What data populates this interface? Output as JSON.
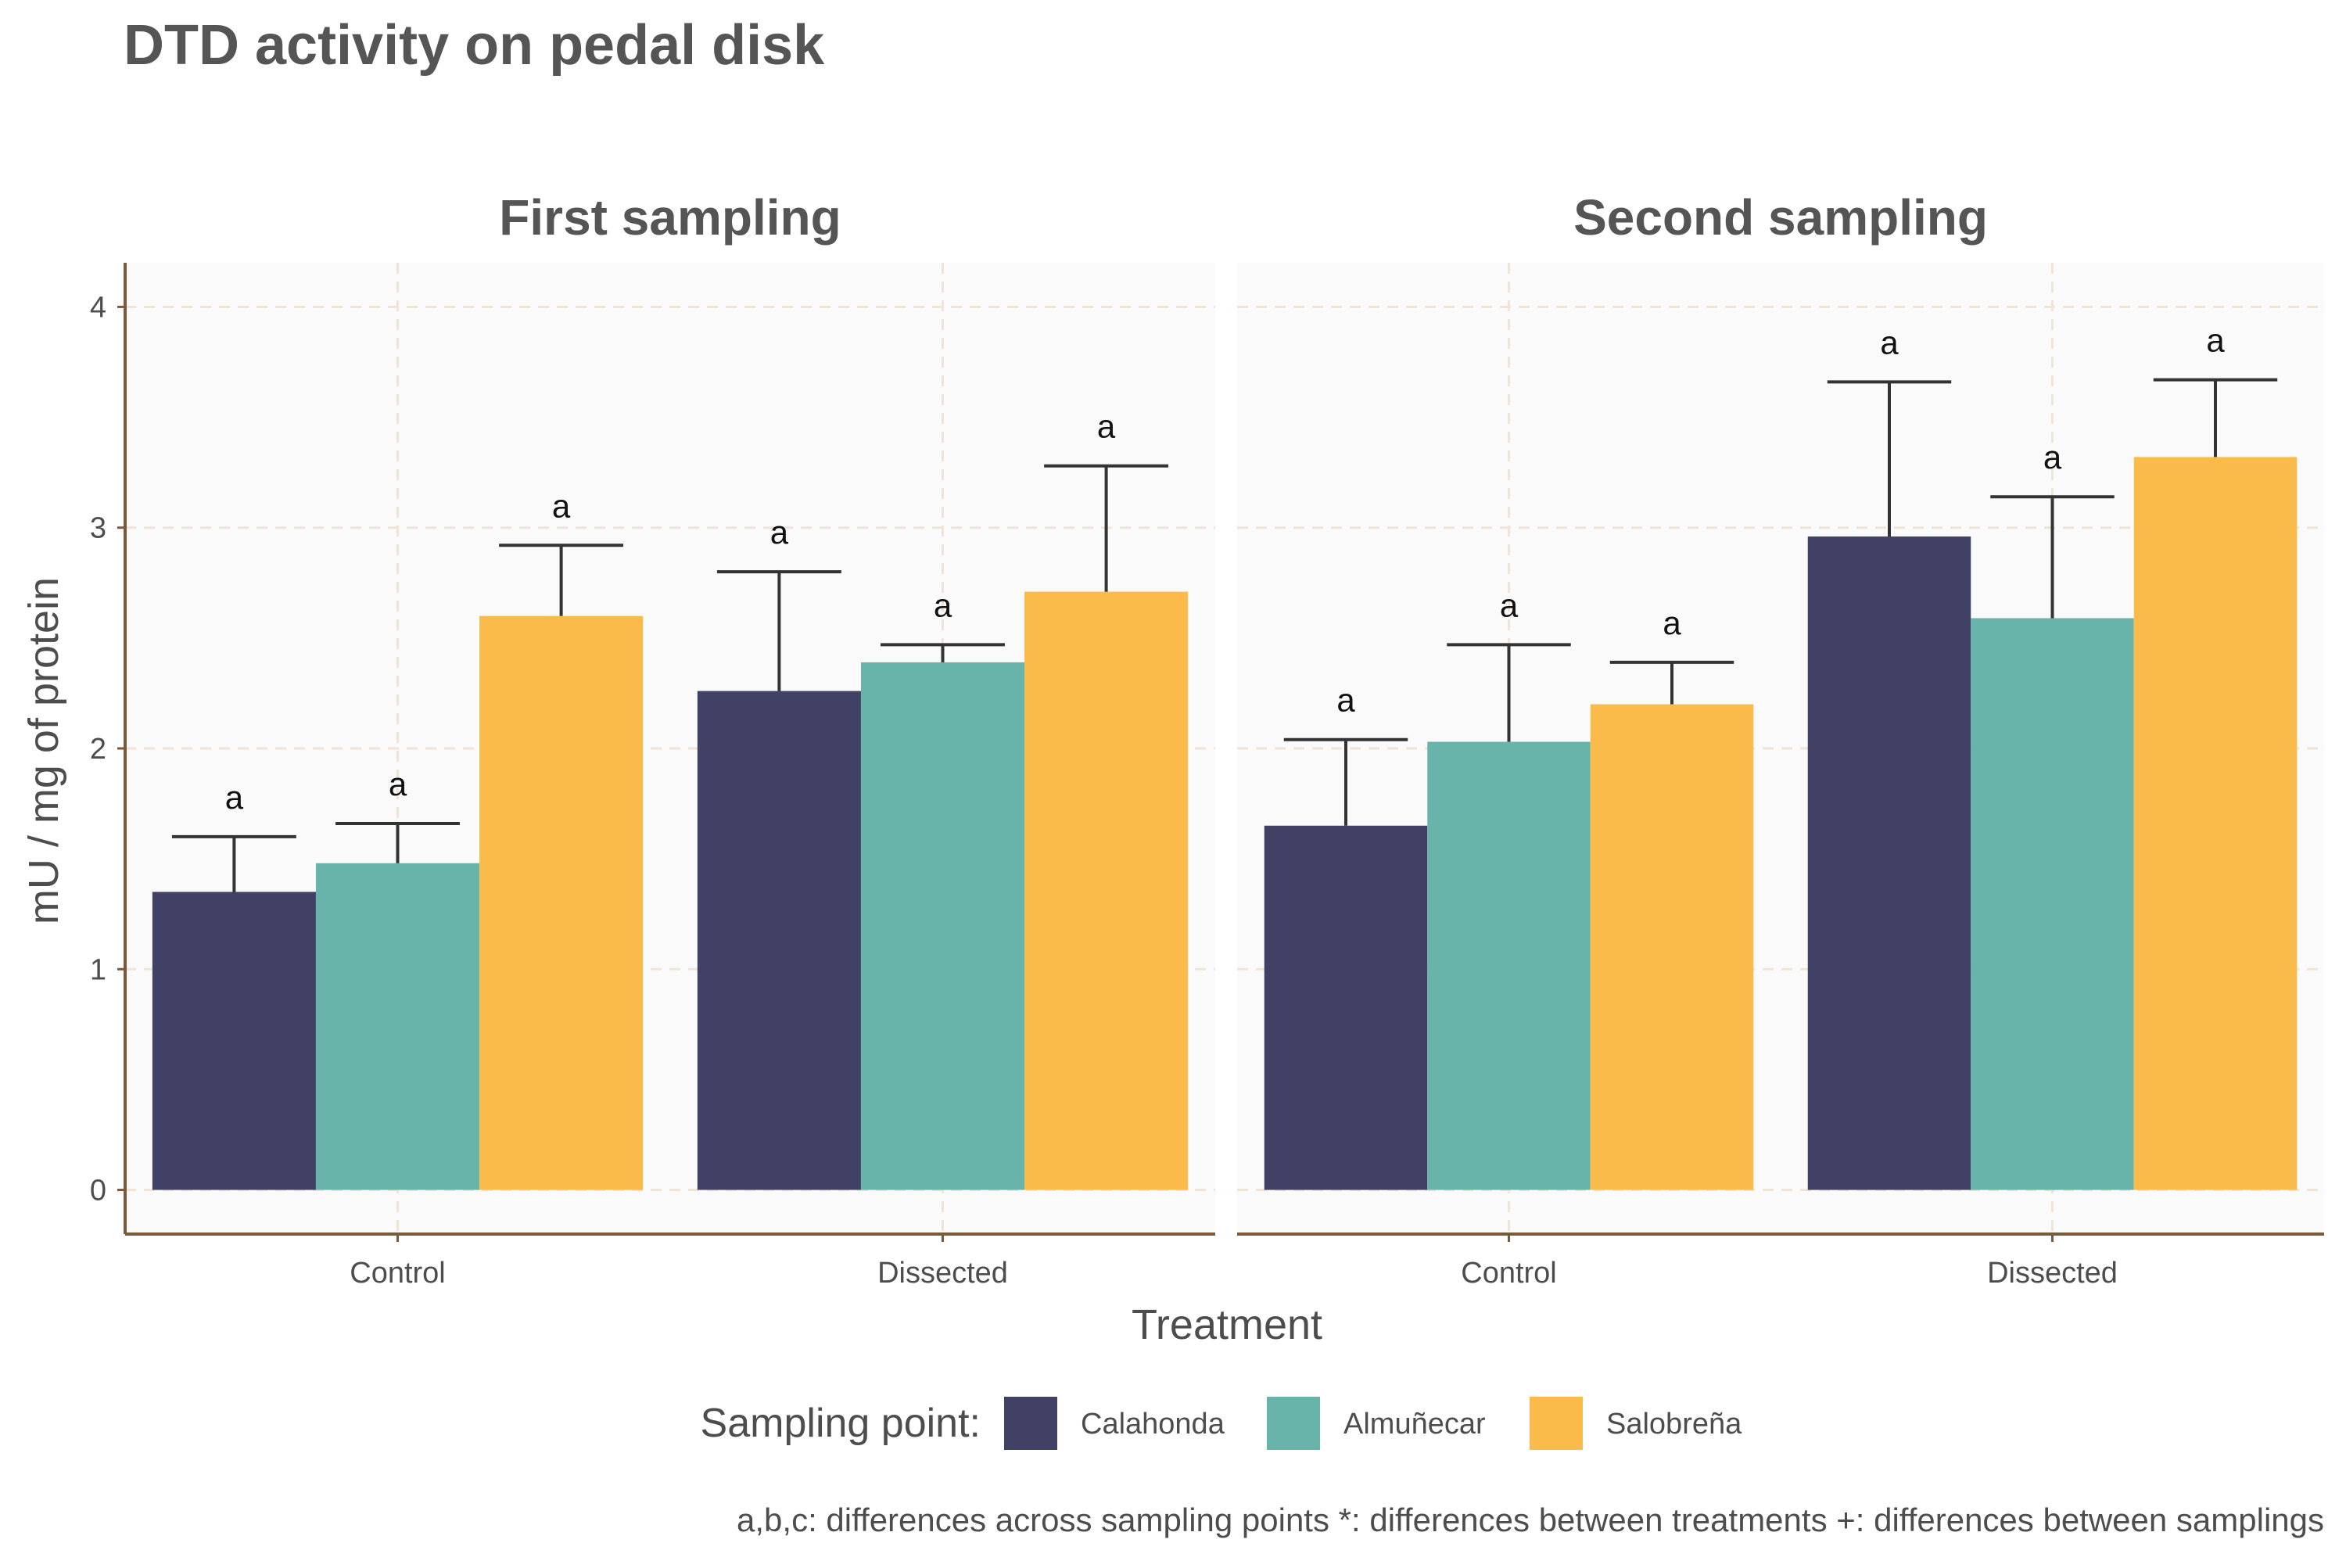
{
  "chart_data": {
    "type": "bar",
    "title": "DTD activity on pedal disk",
    "xlabel": "Treatment",
    "ylabel": "mU / mg  of protein",
    "ylim": [
      -0.2,
      4.2
    ],
    "yticks": [
      0,
      1,
      2,
      3,
      4
    ],
    "grid": true,
    "categories": [
      "Control",
      "Dissected"
    ],
    "legend": {
      "title": "Sampling point:",
      "placement": "bottom"
    },
    "caption": "a,b,c: differences across sampling points    *: differences between treatments    +: differences between samplings",
    "panels": [
      {
        "title": "First sampling",
        "series": [
          {
            "name": "Calahonda",
            "values": [
              1.35,
              2.26
            ],
            "error_upper": [
              1.6,
              2.8
            ],
            "labels": [
              "a",
              "a"
            ]
          },
          {
            "name": "Almuñecar",
            "values": [
              1.48,
              2.39
            ],
            "error_upper": [
              1.66,
              2.47
            ],
            "labels": [
              "a",
              "a"
            ]
          },
          {
            "name": "Salobreña",
            "values": [
              2.6,
              2.71
            ],
            "error_upper": [
              2.92,
              3.28
            ],
            "labels": [
              "a",
              "a"
            ]
          }
        ]
      },
      {
        "title": "Second sampling",
        "series": [
          {
            "name": "Calahonda",
            "values": [
              1.65,
              2.96
            ],
            "error_upper": [
              2.04,
              3.66
            ],
            "labels": [
              "a",
              "a"
            ]
          },
          {
            "name": "Almuñecar",
            "values": [
              2.03,
              2.59
            ],
            "error_upper": [
              2.47,
              3.14
            ],
            "labels": [
              "a",
              "a"
            ]
          },
          {
            "name": "Salobreña",
            "values": [
              2.2,
              3.32
            ],
            "error_upper": [
              2.39,
              3.67
            ],
            "labels": [
              "a",
              "a"
            ]
          }
        ]
      }
    ],
    "colors": {
      "Calahonda": "#414166",
      "Almuñecar": "#69b4aa",
      "Salobreña": "#fbbb4b",
      "panel_bg": "#fafafa",
      "grid": "#efe4d6",
      "axis": "#7a5a3c",
      "errorbar": "#333333"
    }
  }
}
